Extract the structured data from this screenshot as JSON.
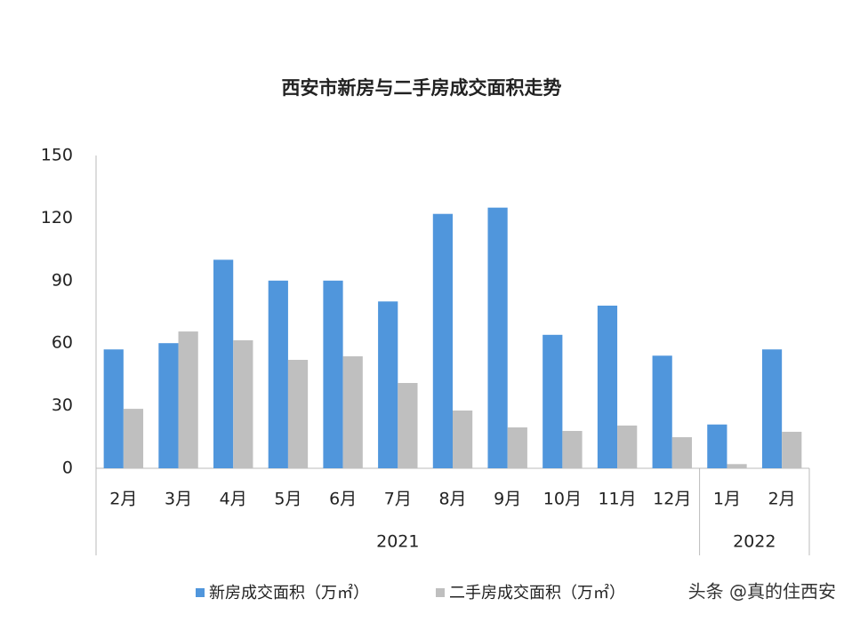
{
  "chart_data": {
    "type": "bar",
    "title": "西安市新房与二手房成交面积走势",
    "groups": [
      {
        "name": "2021",
        "categories": [
          "2月",
          "3月",
          "4月",
          "5月",
          "6月",
          "7月",
          "8月",
          "9月",
          "10月",
          "11月",
          "12月"
        ]
      },
      {
        "name": "2022",
        "categories": [
          "1月",
          "2月"
        ]
      }
    ],
    "series": [
      {
        "name": "新房成交面积（万㎡）",
        "color": "#5096dc",
        "values": [
          57,
          60,
          100,
          90,
          90,
          80,
          122,
          125,
          64,
          78,
          54,
          21,
          57
        ]
      },
      {
        "name": "二手房成交面积（万㎡）",
        "color": "#bfbfbf",
        "values": [
          28.5,
          65.6,
          61.4,
          52,
          53.7,
          40.9,
          27.7,
          19.6,
          17.9,
          20.5,
          14.9,
          2,
          17.5
        ]
      }
    ],
    "ylim": [
      0,
      150
    ],
    "yticks": [
      0,
      30,
      60,
      90,
      120,
      150
    ],
    "grid": false,
    "legend": "bottom",
    "watermark": "头条 @真的住西安"
  }
}
